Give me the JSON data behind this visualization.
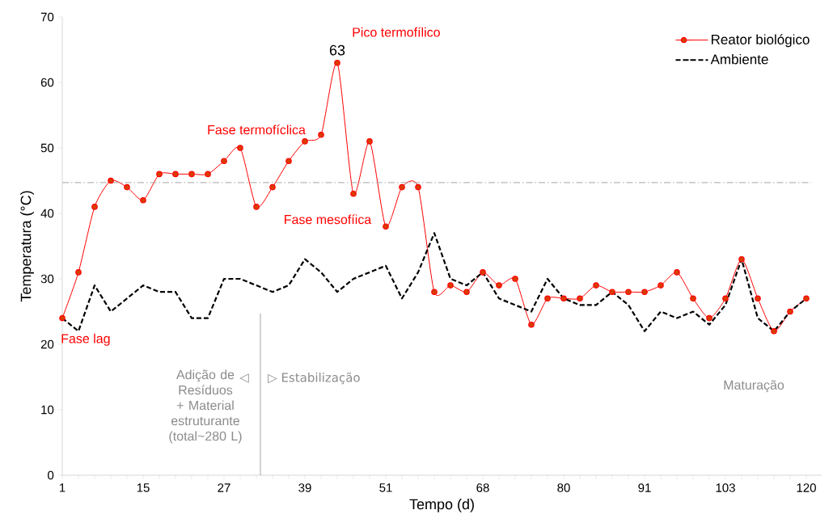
{
  "chart_data": {
    "type": "line",
    "xlabel": "Tempo (d)",
    "ylabel": "Temperatura (°C)",
    "categories": [
      "1",
      null,
      null,
      null,
      null,
      "15",
      null,
      null,
      null,
      null,
      "27",
      null,
      null,
      null,
      null,
      "39",
      null,
      null,
      null,
      null,
      "51",
      null,
      null,
      null,
      null,
      null,
      "68",
      null,
      null,
      null,
      null,
      "80",
      null,
      null,
      null,
      null,
      "91",
      null,
      null,
      null,
      null,
      "103",
      null,
      null,
      null,
      null,
      "120"
    ],
    "series": [
      {
        "name": "Reator biológico",
        "color": "#ff0000",
        "marker": "circle",
        "line_style": "solid",
        "values": [
          24,
          31,
          41,
          45,
          44,
          42,
          46,
          46,
          46,
          46,
          48,
          50,
          41,
          44,
          48,
          51,
          52,
          63,
          43,
          51,
          38,
          44,
          44,
          28,
          29,
          28,
          31,
          29,
          30,
          23,
          27,
          27,
          27,
          29,
          28,
          28,
          28,
          29,
          31,
          27,
          24,
          27,
          33,
          27,
          22,
          25,
          27
        ],
        "value_labels": [
          null,
          null,
          null,
          null,
          null,
          null,
          null,
          null,
          null,
          null,
          null,
          null,
          null,
          null,
          null,
          null,
          null,
          "63",
          null,
          null,
          null,
          null,
          null,
          null,
          null,
          null,
          null,
          null,
          null,
          null,
          null,
          null,
          null,
          null,
          null,
          null,
          null,
          null,
          null,
          null,
          null,
          null,
          null,
          null,
          null,
          null,
          null
        ]
      },
      {
        "name": "Ambiente",
        "color": "#000000",
        "marker": "none",
        "line_style": "dashed",
        "values": [
          24,
          22,
          29,
          25,
          27,
          29,
          28,
          28,
          24,
          24,
          30,
          30,
          29,
          28,
          29,
          33,
          31,
          28,
          30,
          31,
          32,
          27,
          31,
          37,
          30,
          29,
          31,
          27,
          26,
          25,
          30,
          27,
          26,
          26,
          28,
          26,
          22,
          25,
          24,
          25,
          23,
          26,
          33,
          24,
          22,
          25,
          27
        ]
      }
    ],
    "ylim": [
      0,
      70
    ],
    "yticks": [
      0,
      10,
      20,
      30,
      40,
      50,
      60,
      70
    ],
    "legend": "top right",
    "ref_lines": [
      {
        "axis": "y",
        "value": 44.7,
        "color": "#a6a6a6",
        "line_style": "dashdot"
      }
    ],
    "annotations": [
      "Pico termofílico",
      "Fase termofíclica",
      "Fase mesofíica",
      "Fase lag",
      "Adição de Resíduos + Material estruturante (total~280 L)",
      "◁",
      "▷ Estabilização",
      "Maturação"
    ]
  }
}
